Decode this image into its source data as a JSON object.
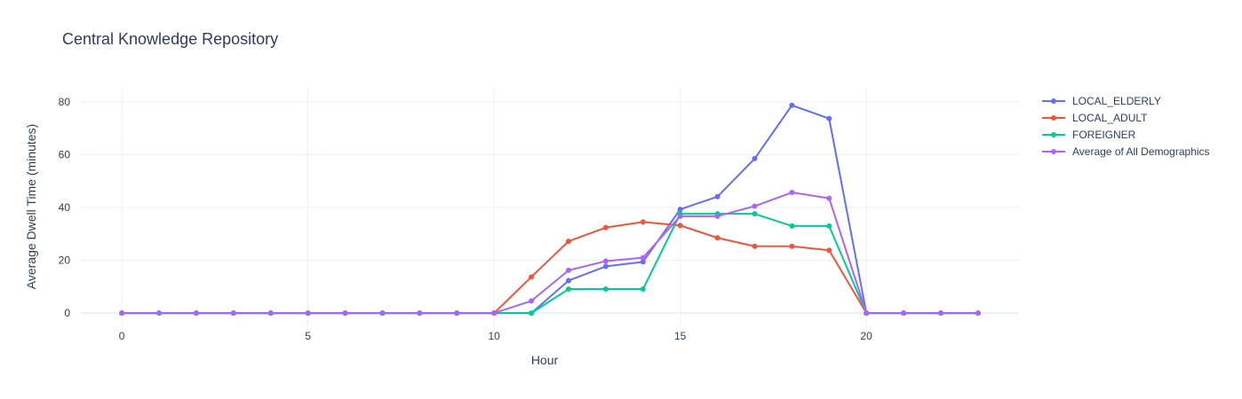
{
  "chart_data": {
    "type": "line",
    "title": "Central Knowledge Repository",
    "xlabel": "Hour",
    "ylabel": "Average Dwell Time (minutes)",
    "xlim": [
      -1.1,
      24.1
    ],
    "ylim": [
      -5,
      85
    ],
    "x_ticks": [
      0,
      5,
      10,
      15,
      20
    ],
    "y_ticks": [
      0,
      20,
      40,
      60,
      80
    ],
    "grid": true,
    "legend_position": "top-right",
    "x": [
      0,
      1,
      2,
      3,
      4,
      5,
      6,
      7,
      8,
      9,
      10,
      11,
      12,
      13,
      14,
      15,
      16,
      17,
      18,
      19,
      20,
      21,
      22,
      23
    ],
    "series": [
      {
        "name": "LOCAL_ELDERLY",
        "color": "#636efa",
        "values": [
          0,
          0,
          0,
          0,
          0,
          0,
          0,
          0,
          0,
          0,
          0,
          0,
          12.3,
          17.7,
          19.4,
          39.3,
          44.1,
          58.5,
          78.7,
          73.7,
          0,
          0,
          0,
          0
        ]
      },
      {
        "name": "LOCAL_ADULT",
        "color": "#ef553b",
        "values": [
          0,
          0,
          0,
          0,
          0,
          0,
          0,
          0,
          0,
          0,
          0,
          13.7,
          27.2,
          32.4,
          34.5,
          33.2,
          28.5,
          25.3,
          25.3,
          23.8,
          0,
          0,
          0,
          0
        ]
      },
      {
        "name": "FOREIGNER",
        "color": "#00cc96",
        "values": [
          0,
          0,
          0,
          0,
          0,
          0,
          0,
          0,
          0,
          0,
          0,
          0,
          9.1,
          9.1,
          9.1,
          37.6,
          37.6,
          37.6,
          33.0,
          33.0,
          0,
          0,
          0,
          0
        ]
      },
      {
        "name": "Average of All Demographics",
        "color": "#ab63fa",
        "values": [
          0,
          0,
          0,
          0,
          0,
          0,
          0,
          0,
          0,
          0,
          0,
          4.6,
          16.2,
          19.7,
          21.0,
          36.7,
          36.7,
          40.5,
          45.7,
          43.5,
          0,
          0,
          0,
          0
        ]
      }
    ]
  }
}
